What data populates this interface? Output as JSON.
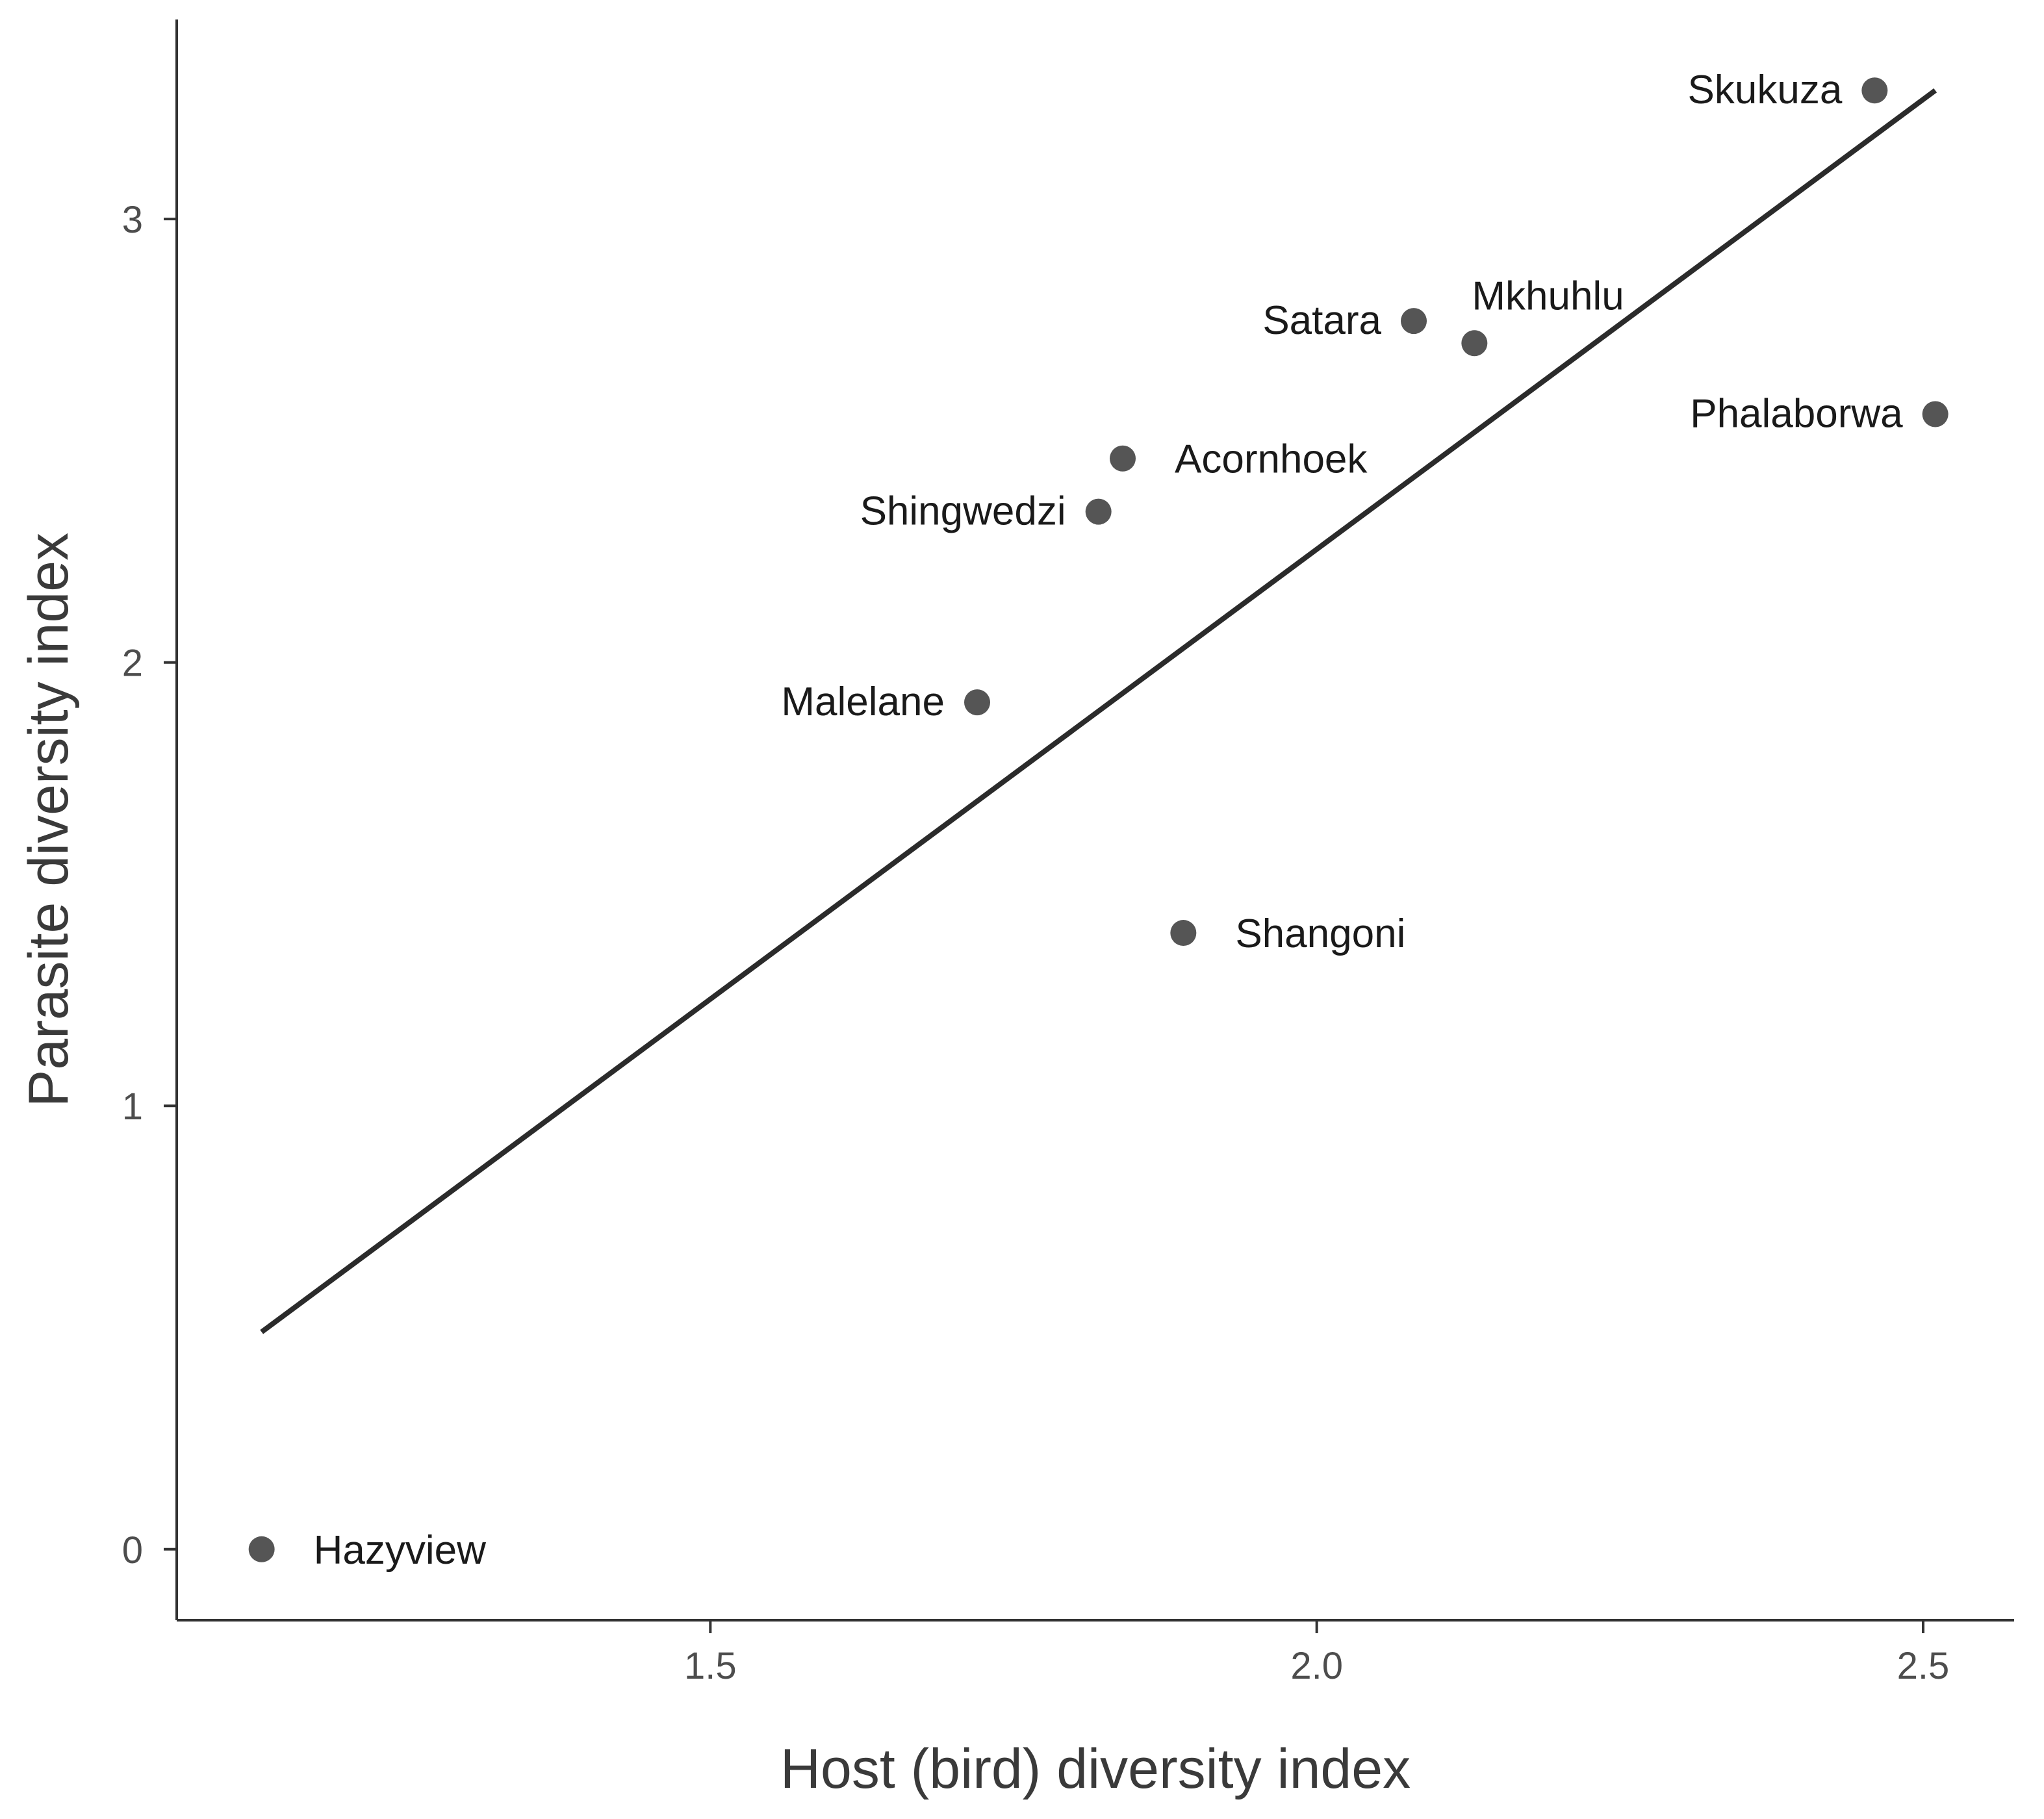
{
  "chart_data": {
    "type": "scatter",
    "title": "",
    "xlabel": "Host (bird) diversity index",
    "ylabel": "Parasite diversity index",
    "xlim": [
      1.06,
      2.575
    ],
    "ylim": [
      -0.16,
      3.45
    ],
    "xticks": [
      1.5,
      2.0,
      2.5
    ],
    "xtick_labels": [
      "1.5",
      "2.0",
      "2.5"
    ],
    "yticks": [
      0,
      1,
      2,
      3
    ],
    "ytick_labels": [
      "0",
      "1",
      "2",
      "3"
    ],
    "grid": false,
    "legend": "none",
    "point_color": "#555555",
    "line_color": "#2b2b2b",
    "points": [
      {
        "label": "Hazyview",
        "x": 1.13,
        "y": 0.0,
        "label_side": "right"
      },
      {
        "label": "Malelane",
        "x": 1.72,
        "y": 1.91,
        "label_side": "left"
      },
      {
        "label": "Shingwedzi",
        "x": 1.82,
        "y": 2.34,
        "label_side": "left"
      },
      {
        "label": "Acornhoek",
        "x": 1.84,
        "y": 2.46,
        "label_side": "right"
      },
      {
        "label": "Shangoni",
        "x": 1.89,
        "y": 1.39,
        "label_side": "right"
      },
      {
        "label": "Satara",
        "x": 2.08,
        "y": 2.77,
        "label_side": "left"
      },
      {
        "label": "Mkhuhlu",
        "x": 2.13,
        "y": 2.72,
        "label_side": "above-right"
      },
      {
        "label": "Skukuza",
        "x": 2.46,
        "y": 3.29,
        "label_side": "left"
      },
      {
        "label": "Phalaborwa",
        "x": 2.51,
        "y": 2.56,
        "label_side": "left"
      }
    ],
    "fit_line": {
      "x": [
        1.13,
        2.51
      ],
      "y": [
        0.49,
        3.29
      ]
    }
  }
}
